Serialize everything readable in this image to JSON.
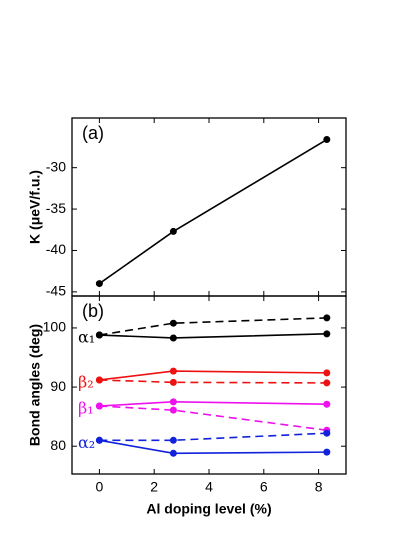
{
  "chart_data": [
    {
      "type": "line",
      "annotation": "(a)",
      "ylabel": "K (μeV/f.u.)",
      "x": [
        0,
        2.7,
        8.3
      ],
      "values": [
        -44.0,
        -37.7,
        -26.6
      ],
      "color": "#000000",
      "xlim": [
        -1,
        9
      ],
      "ylim": [
        -45.5,
        -24
      ],
      "yticks": [
        -45,
        -40,
        -35,
        -30
      ]
    },
    {
      "type": "line",
      "annotation": "(b)",
      "ylabel": "Bond angles (deg)",
      "xlabel": "Al doping level (%)",
      "x": [
        0,
        2.7,
        8.3
      ],
      "xlim": [
        -1,
        9
      ],
      "xticks": [
        0,
        2,
        4,
        6,
        8
      ],
      "ylim": [
        75.3,
        105.4
      ],
      "yticks": [
        80,
        90,
        100
      ],
      "series": [
        {
          "name": "α₁",
          "color": "#000000",
          "values": [
            98.8,
            98.3,
            99.0
          ],
          "dashed_values": [
            98.8,
            100.8,
            101.7
          ]
        },
        {
          "name": "β₂",
          "color": "#ee1111",
          "values": [
            91.2,
            92.7,
            92.4
          ],
          "dashed_values": [
            91.2,
            90.8,
            90.7
          ]
        },
        {
          "name": "β₁",
          "color": "#ee11ee",
          "values": [
            86.8,
            87.5,
            87.1
          ],
          "dashed_values": [
            86.8,
            86.1,
            82.7
          ]
        },
        {
          "name": "α₂",
          "color": "#1122dd",
          "values": [
            81.0,
            78.8,
            79.0
          ],
          "dashed_values": [
            81.0,
            81.0,
            82.2
          ]
        }
      ]
    }
  ]
}
